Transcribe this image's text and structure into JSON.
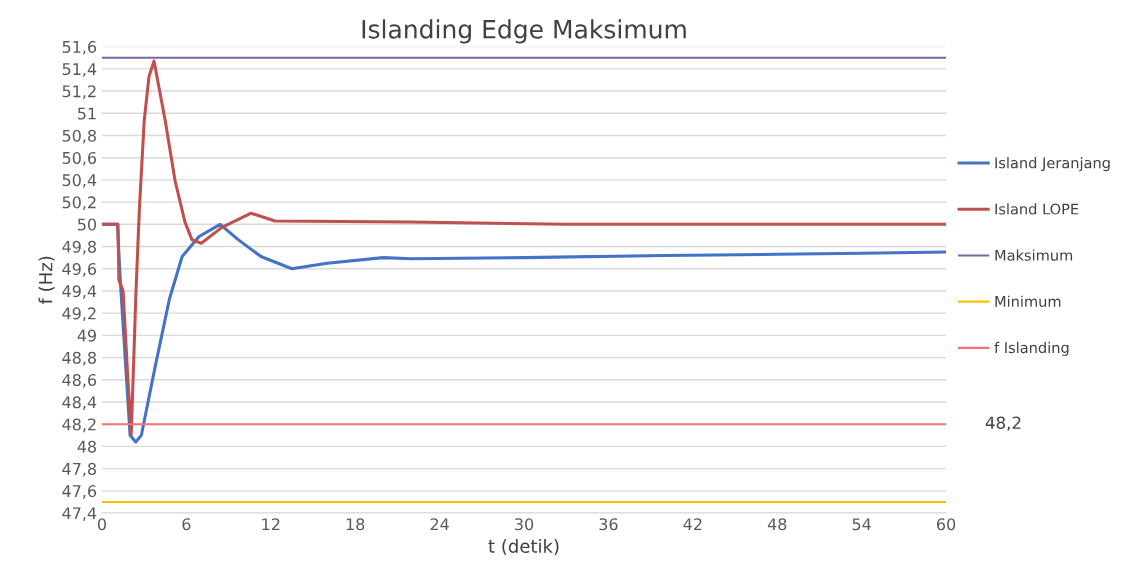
{
  "chart_data": {
    "type": "line",
    "title": "Islanding Edge Maksimum",
    "xlabel": "t (detik)",
    "ylabel": "f (Hz)",
    "xlim": [
      0,
      60
    ],
    "xticks": [
      0,
      6,
      12,
      18,
      24,
      30,
      36,
      42,
      48,
      54,
      60
    ],
    "ylim": [
      47.4,
      51.6
    ],
    "yticks": [
      {
        "value": 47.4,
        "label": "47,4"
      },
      {
        "value": 47.6,
        "label": "47,6"
      },
      {
        "value": 47.8,
        "label": "47,8"
      },
      {
        "value": 48,
        "label": "48"
      },
      {
        "value": 48.2,
        "label": "48,2"
      },
      {
        "value": 48.4,
        "label": "48,4"
      },
      {
        "value": 48.6,
        "label": "48,6"
      },
      {
        "value": 48.8,
        "label": "48,8"
      },
      {
        "value": 49,
        "label": "49"
      },
      {
        "value": 49.2,
        "label": "49,2"
      },
      {
        "value": 49.4,
        "label": "49,4"
      },
      {
        "value": 49.6,
        "label": "49,6"
      },
      {
        "value": 49.8,
        "label": "49,8"
      },
      {
        "value": 50,
        "label": "50"
      },
      {
        "value": 50.2,
        "label": "50,2"
      },
      {
        "value": 50.4,
        "label": "50,4"
      },
      {
        "value": 50.6,
        "label": "50,6"
      },
      {
        "value": 50.8,
        "label": "50,8"
      },
      {
        "value": 51,
        "label": "51"
      },
      {
        "value": 51.2,
        "label": "51,2"
      },
      {
        "value": 51.4,
        "label": "51,4"
      },
      {
        "value": 51.6,
        "label": "51,6"
      }
    ],
    "grid": "y",
    "legend": "right",
    "marker": "none",
    "line_style": "solid",
    "series": [
      {
        "name": "Island Jeranjang",
        "color": "#4472c4",
        "x": [
          0,
          1.1,
          1.3,
          2.0,
          2.4,
          2.8,
          3.8,
          4.8,
          5.7,
          6.9,
          8.4,
          9.7,
          11.3,
          13.5,
          16,
          20,
          22,
          30,
          40,
          48,
          54,
          60
        ],
        "values": [
          50,
          50,
          49.5,
          48.1,
          48.04,
          48.1,
          48.73,
          49.33,
          49.71,
          49.89,
          50.0,
          49.86,
          49.71,
          49.6,
          49.65,
          49.7,
          49.69,
          49.7,
          49.72,
          49.73,
          49.74,
          49.75
        ]
      },
      {
        "name": "Island LOPE",
        "color": "#c0504d",
        "x": [
          0,
          1.14,
          1.2,
          1.5,
          1.8,
          2.08,
          2.42,
          2.66,
          3.0,
          3.34,
          3.7,
          4.5,
          5.2,
          5.9,
          6.4,
          7.06,
          8.5,
          10.6,
          12.3,
          22,
          33,
          60
        ],
        "values": [
          50,
          50,
          49.5,
          49.4,
          48.7,
          48.11,
          49.4,
          50.14,
          50.93,
          51.33,
          51.47,
          50.93,
          50.39,
          50.02,
          49.86,
          49.83,
          49.97,
          50.1,
          50.03,
          50.02,
          50.0,
          50.0
        ]
      },
      {
        "name": "Maksimum",
        "color": "#8064a2",
        "x": [
          0,
          60
        ],
        "values": [
          51.5,
          51.5
        ]
      },
      {
        "name": "Minimum",
        "color": "#ffc000",
        "x": [
          0,
          60
        ],
        "values": [
          47.5,
          47.5
        ]
      },
      {
        "name": "f Islanding",
        "color": "#ff7070",
        "x": [
          0,
          60
        ],
        "values": [
          48.2,
          48.2
        ]
      }
    ],
    "annotations": [
      {
        "text": "48,2",
        "x": 60,
        "y": 48.2
      }
    ]
  }
}
